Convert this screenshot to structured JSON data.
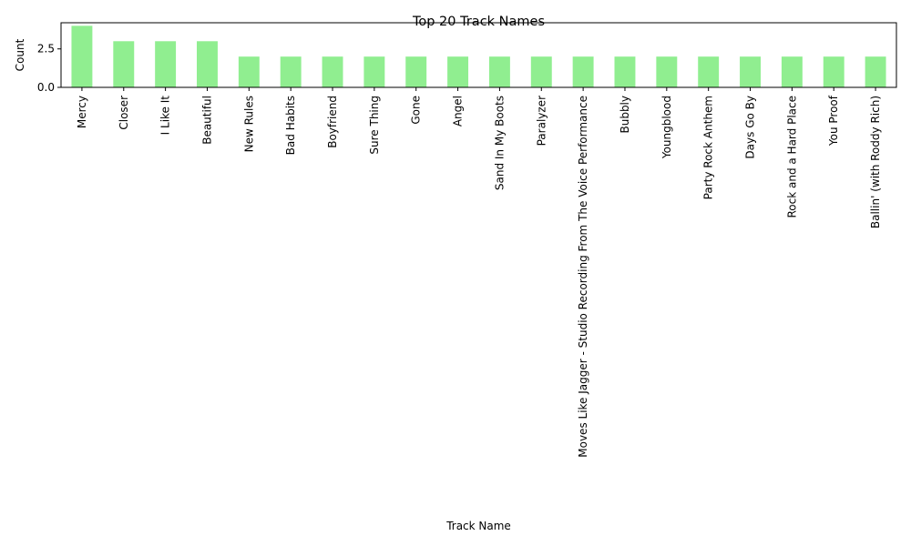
{
  "chart_data": {
    "type": "bar",
    "title": "Top 20 Track Names",
    "xlabel": "Track Name",
    "ylabel": "Count",
    "categories": [
      "Mercy",
      "Closer",
      "I Like It",
      "Beautiful",
      "New Rules",
      "Bad Habits",
      "Boyfriend",
      "Sure Thing",
      "Gone",
      "Angel",
      "Sand In My Boots",
      "Paralyzer",
      "Moves Like Jagger - Studio Recording From The Voice Performance",
      "Bubbly",
      "Youngblood",
      "Party Rock Anthem",
      "Days Go By",
      "Rock and a Hard Place",
      "You Proof",
      "Ballin' (with Roddy Rich)"
    ],
    "values": [
      4,
      3,
      3,
      3,
      2,
      2,
      2,
      2,
      2,
      2,
      2,
      2,
      2,
      2,
      2,
      2,
      2,
      2,
      2,
      2
    ],
    "yticks": [
      "0.0",
      "2.5"
    ],
    "ylim": [
      0,
      4.2
    ],
    "grid": false,
    "bar_color": "#90ee90"
  }
}
